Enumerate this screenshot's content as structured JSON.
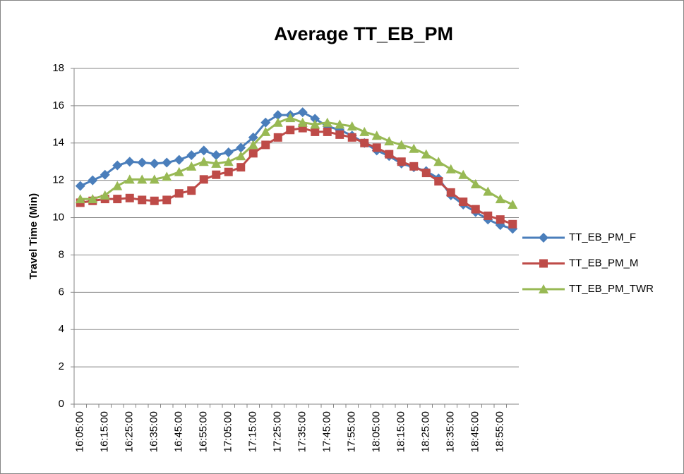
{
  "chart_data": {
    "type": "line",
    "title": "Average TT_EB_PM",
    "y_label": "Travel Time (Min)",
    "categories": [
      "16:05:00",
      null,
      "16:15:00",
      null,
      "16:25:00",
      null,
      "16:35:00",
      null,
      "16:45:00",
      null,
      "16:55:00",
      null,
      "17:05:00",
      null,
      "17:15:00",
      null,
      "17:25:00",
      null,
      "17:35:00",
      null,
      "17:45:00",
      null,
      "17:55:00",
      null,
      "18:05:00",
      null,
      "18:15:00",
      null,
      "18:25:00",
      null,
      "18:35:00",
      null,
      "18:45:00",
      null,
      "18:55:00",
      null
    ],
    "series": [
      {
        "name": "TT_EB_PM_F",
        "color": "#4a7ebb",
        "marker": "diamond",
        "values": [
          11.7,
          12.0,
          12.3,
          12.8,
          13.0,
          12.95,
          12.9,
          12.95,
          13.1,
          13.35,
          13.6,
          13.35,
          13.5,
          13.75,
          14.3,
          15.1,
          15.5,
          15.5,
          15.65,
          15.3,
          14.9,
          14.7,
          14.4,
          14.0,
          13.6,
          13.3,
          12.9,
          12.7,
          12.5,
          12.1,
          11.2,
          10.7,
          10.3,
          9.9,
          9.6,
          9.4
        ]
      },
      {
        "name": "TT_EB_PM_M",
        "color": "#be4b48",
        "marker": "square",
        "values": [
          10.8,
          10.9,
          11.0,
          11.0,
          11.05,
          10.95,
          10.9,
          10.95,
          11.3,
          11.45,
          12.05,
          12.3,
          12.45,
          12.7,
          13.45,
          13.9,
          14.3,
          14.7,
          14.8,
          14.6,
          14.6,
          14.45,
          14.3,
          14.0,
          13.75,
          13.4,
          13.0,
          12.75,
          12.4,
          11.95,
          11.35,
          10.85,
          10.45,
          10.1,
          9.9,
          9.65
        ]
      },
      {
        "name": "TT_EB_PM_TWR",
        "color": "#98b954",
        "marker": "triangle",
        "values": [
          11.0,
          11.0,
          11.2,
          11.7,
          12.05,
          12.05,
          12.05,
          12.2,
          12.45,
          12.75,
          13.0,
          12.9,
          13.0,
          13.3,
          13.9,
          14.6,
          15.1,
          15.35,
          15.1,
          15.0,
          15.1,
          15.0,
          14.9,
          14.6,
          14.4,
          14.1,
          13.9,
          13.7,
          13.4,
          13.0,
          12.6,
          12.3,
          11.8,
          11.4,
          11.0,
          10.7
        ]
      }
    ],
    "ylim": [
      0,
      18
    ],
    "yticks": [
      0,
      2,
      4,
      6,
      8,
      10,
      12,
      14,
      16,
      18
    ],
    "grid": true,
    "legend": "right"
  }
}
